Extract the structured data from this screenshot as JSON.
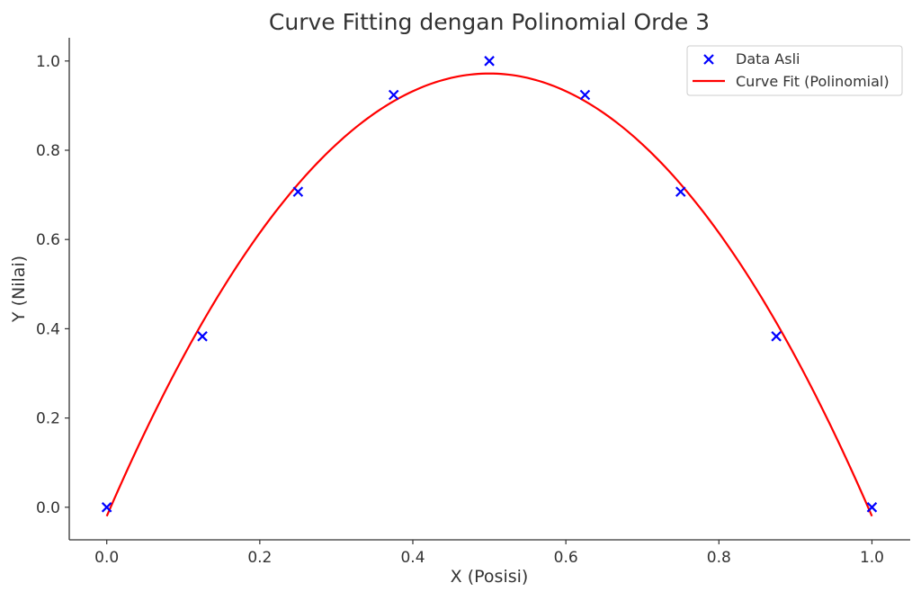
{
  "chart_data": {
    "type": "scatter+line",
    "title": "Curve Fitting dengan Polinomial Orde 3",
    "xlabel": "X (Posisi)",
    "ylabel": "Y (Nilai)",
    "xlim": [
      -0.049,
      1.05
    ],
    "ylim": [
      -0.073,
      1.052
    ],
    "xticks": [
      0.0,
      0.2,
      0.4,
      0.6,
      0.8,
      1.0
    ],
    "xtick_labels": [
      "0.0",
      "0.2",
      "0.4",
      "0.6",
      "0.8",
      "1.0"
    ],
    "yticks": [
      0.0,
      0.2,
      0.4,
      0.6,
      0.8,
      1.0
    ],
    "ytick_labels": [
      "0.0",
      "0.2",
      "0.4",
      "0.6",
      "0.8",
      "1.0"
    ],
    "grid": false,
    "legend_position": "top-right",
    "series": [
      {
        "name": "Data Asli",
        "kind": "scatter",
        "marker": "x",
        "color": "#0000ff",
        "x": [
          0.0,
          0.125,
          0.25,
          0.375,
          0.5,
          0.625,
          0.75,
          0.875,
          1.0
        ],
        "y": [
          0.0,
          0.383,
          0.707,
          0.924,
          1.0,
          0.924,
          0.707,
          0.383,
          0.0
        ]
      },
      {
        "name": "Curve Fit (Polinomial)",
        "kind": "line",
        "color": "#ff0000",
        "x_range": [
          0.0,
          1.0
        ],
        "coefficients_ascending": [
          -0.02,
          3.968,
          -3.968,
          0.0
        ]
      }
    ]
  }
}
